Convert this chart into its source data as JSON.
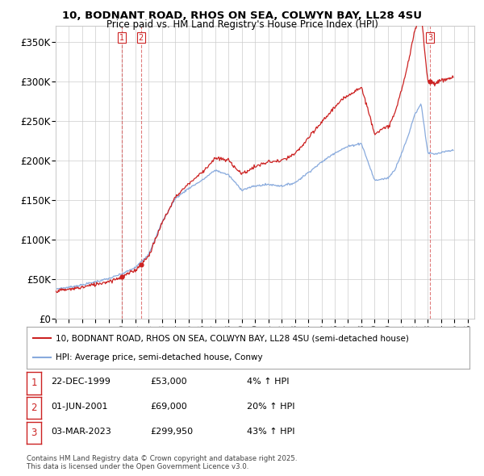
{
  "title": "10, BODNANT ROAD, RHOS ON SEA, COLWYN BAY, LL28 4SU",
  "subtitle": "Price paid vs. HM Land Registry's House Price Index (HPI)",
  "background_color": "#ffffff",
  "grid_color": "#cccccc",
  "hpi_color": "#88aadd",
  "price_color": "#cc2222",
  "ylim": [
    0,
    370000
  ],
  "xlim_start": 1995.0,
  "xlim_end": 2026.5,
  "yticks": [
    0,
    50000,
    100000,
    150000,
    200000,
    250000,
    300000,
    350000
  ],
  "ytick_labels": [
    "£0",
    "£50K",
    "£100K",
    "£150K",
    "£200K",
    "£250K",
    "£300K",
    "£350K"
  ],
  "xticks": [
    1995,
    1996,
    1997,
    1998,
    1999,
    2000,
    2001,
    2002,
    2003,
    2004,
    2005,
    2006,
    2007,
    2008,
    2009,
    2010,
    2011,
    2012,
    2013,
    2014,
    2015,
    2016,
    2017,
    2018,
    2019,
    2020,
    2021,
    2022,
    2023,
    2024,
    2025,
    2026
  ],
  "sale_dates": [
    1999.978,
    2001.415,
    2023.163
  ],
  "sale_prices": [
    53000,
    69000,
    299950
  ],
  "sale_labels": [
    "1",
    "2",
    "3"
  ],
  "legend_line1": "10, BODNANT ROAD, RHOS ON SEA, COLWYN BAY, LL28 4SU (semi-detached house)",
  "legend_line2": "HPI: Average price, semi-detached house, Conwy",
  "table_entries": [
    {
      "num": "1",
      "date": "22-DEC-1999",
      "price": "£53,000",
      "change": "4% ↑ HPI"
    },
    {
      "num": "2",
      "date": "01-JUN-2001",
      "price": "£69,000",
      "change": "20% ↑ HPI"
    },
    {
      "num": "3",
      "date": "03-MAR-2023",
      "price": "£299,950",
      "change": "43% ↑ HPI"
    }
  ],
  "copyright_text": "Contains HM Land Registry data © Crown copyright and database right 2025.\nThis data is licensed under the Open Government Licence v3.0.",
  "hpi_key_x": [
    1995.0,
    1996.0,
    1997.0,
    1998.0,
    1999.0,
    2000.0,
    2001.0,
    2002.0,
    2003.0,
    2004.0,
    2005.0,
    2006.0,
    2007.0,
    2008.0,
    2009.0,
    2010.0,
    2011.0,
    2012.0,
    2013.0,
    2014.0,
    2015.0,
    2016.0,
    2017.0,
    2018.0,
    2019.0,
    2020.0,
    2020.5,
    2021.0,
    2021.5,
    2022.0,
    2022.5,
    2023.0,
    2023.5,
    2024.0,
    2024.5,
    2024.917
  ],
  "hpi_key_y": [
    38000,
    40000,
    43000,
    47000,
    51000,
    57000,
    65000,
    82000,
    122000,
    152000,
    165000,
    175000,
    188000,
    182000,
    163000,
    168000,
    170000,
    168000,
    172000,
    185000,
    198000,
    210000,
    218000,
    222000,
    175000,
    178000,
    188000,
    208000,
    230000,
    258000,
    272000,
    210000,
    208000,
    210000,
    212000,
    213000
  ]
}
